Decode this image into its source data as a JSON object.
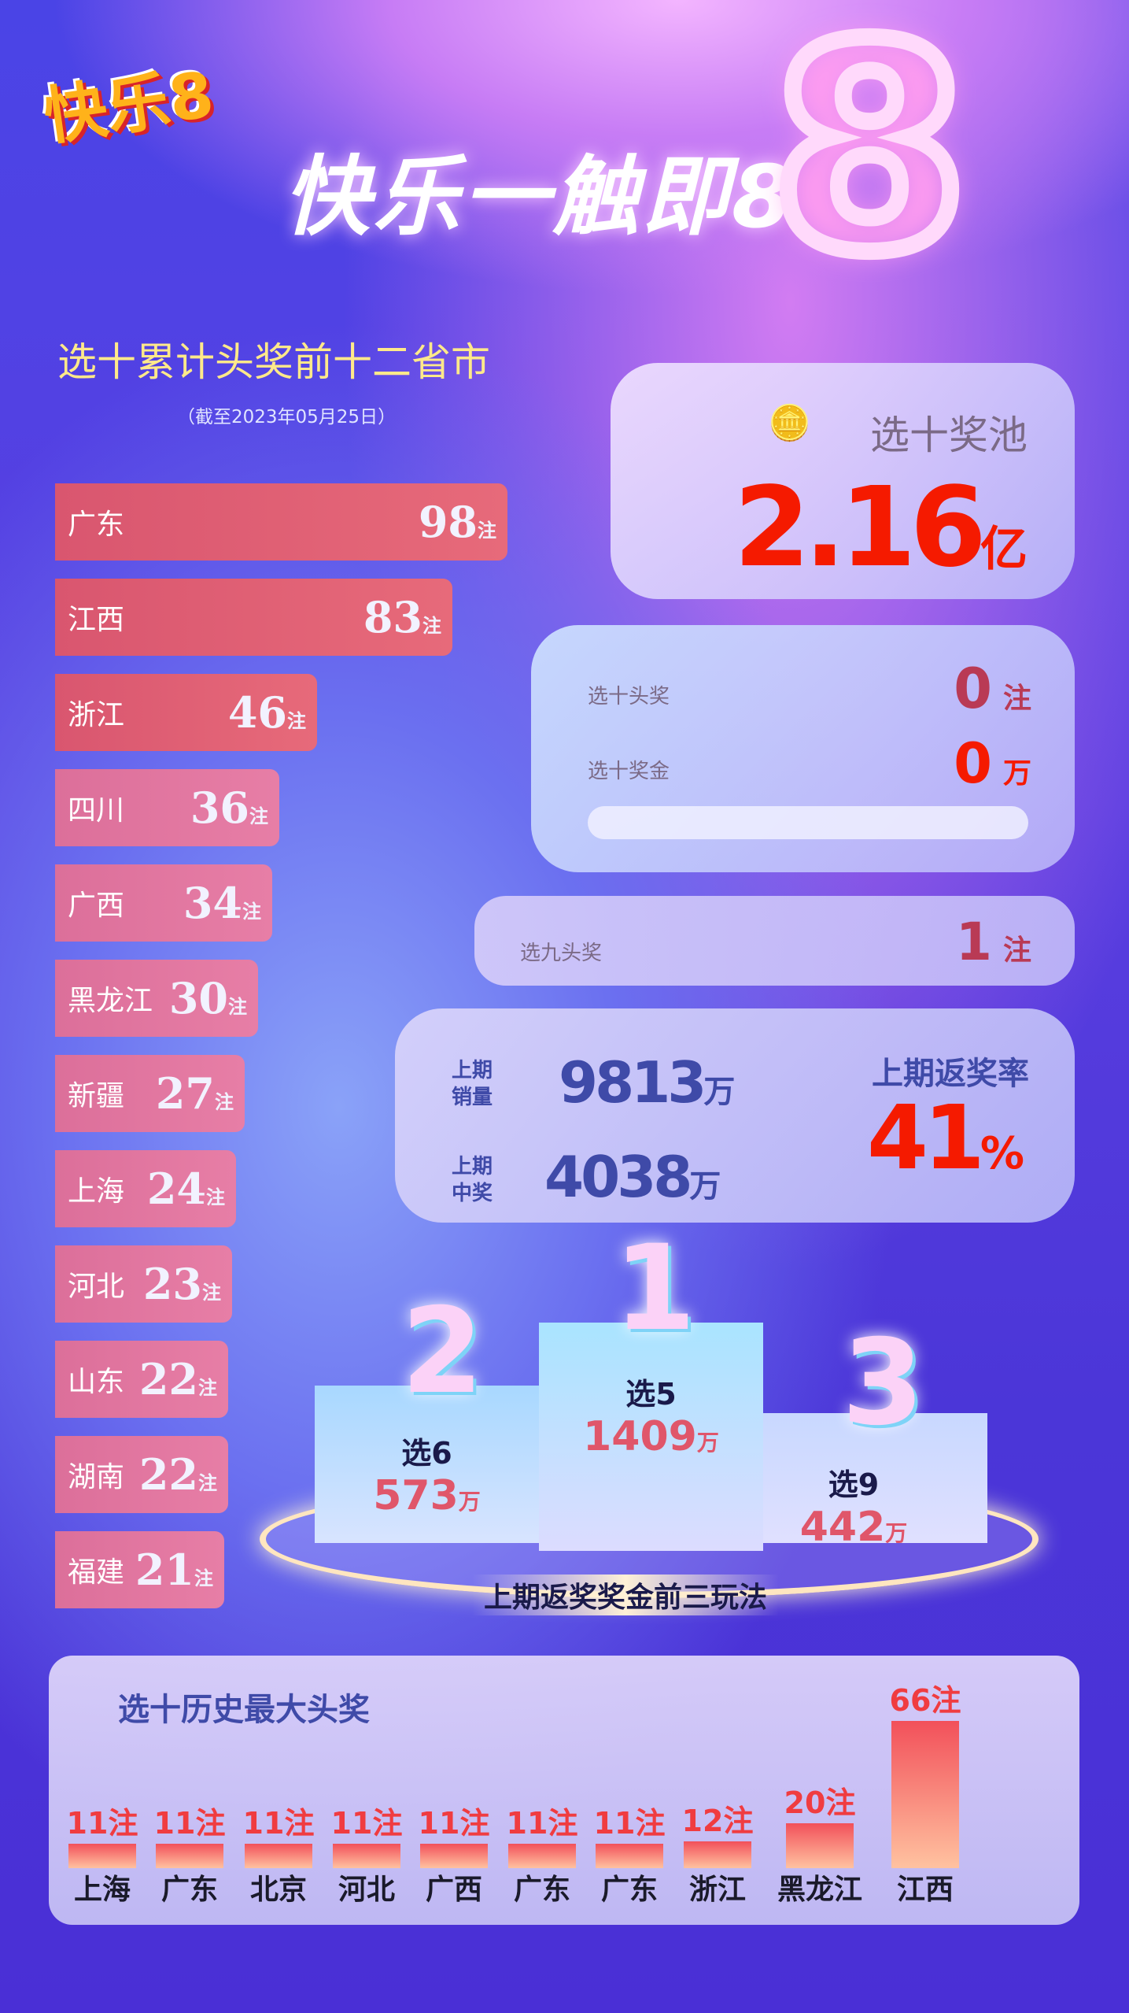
{
  "header": {
    "logo_text": "快乐8",
    "slogan": "快乐一触即8",
    "eight": "8"
  },
  "provinces": {
    "title": "选十累计头奖前十二省市",
    "subtitle": "（截至2023年05月25日）",
    "unit": "注",
    "items": [
      {
        "name": "广东",
        "value": 98
      },
      {
        "name": "江西",
        "value": 83
      },
      {
        "name": "浙江",
        "value": 46
      },
      {
        "name": "四川",
        "value": 36
      },
      {
        "name": "广西",
        "value": 34
      },
      {
        "name": "黑龙江",
        "value": 30
      },
      {
        "name": "新疆",
        "value": 27
      },
      {
        "name": "上海",
        "value": 24
      },
      {
        "name": "河北",
        "value": 23
      },
      {
        "name": "山东",
        "value": 22
      },
      {
        "name": "湖南",
        "value": 22
      },
      {
        "name": "福建",
        "value": 21
      }
    ]
  },
  "pool": {
    "label": "选十奖池",
    "value": "2.16",
    "unit": "亿"
  },
  "top10": {
    "jackpot_label": "选十头奖",
    "jackpot_value": "0",
    "jackpot_unit": "注",
    "prize_label": "选十奖金",
    "prize_value": "0",
    "prize_unit": "万"
  },
  "top9": {
    "label": "选九头奖",
    "value": "1",
    "unit": "注"
  },
  "last": {
    "sales_label1": "上期",
    "sales_label2": "销量",
    "sales_value": "9813",
    "sales_unit": "万",
    "win_label1": "上期",
    "win_label2": "中奖",
    "win_value": "4038",
    "win_unit": "万",
    "rate_label": "上期返奖率",
    "rate_value": "41",
    "rate_unit": "%"
  },
  "podium": {
    "caption": "上期返奖奖金前三玩法",
    "unit": "万",
    "items": [
      {
        "rank": "1",
        "game": "选5",
        "value": "1409"
      },
      {
        "rank": "2",
        "game": "选6",
        "value": "573"
      },
      {
        "rank": "3",
        "game": "选9",
        "value": "442"
      }
    ]
  },
  "history": {
    "title": "选十历史最大头奖",
    "unit": "注",
    "items": [
      {
        "city": "上海",
        "value": 11
      },
      {
        "city": "广东",
        "value": 11
      },
      {
        "city": "北京",
        "value": 11
      },
      {
        "city": "河北",
        "value": 11
      },
      {
        "city": "广西",
        "value": 11
      },
      {
        "city": "广东",
        "value": 11
      },
      {
        "city": "广东",
        "value": 11
      },
      {
        "city": "浙江",
        "value": 12
      },
      {
        "city": "黑龙江",
        "value": 20
      },
      {
        "city": "江西",
        "value": 66
      }
    ]
  },
  "colors": {
    "accent_red": "#f51a00",
    "navy": "#3f4aa8",
    "title_yellow": "#ffe98a",
    "bar_red": "#d9566f",
    "bar_pink": "#dc6f9a"
  }
}
